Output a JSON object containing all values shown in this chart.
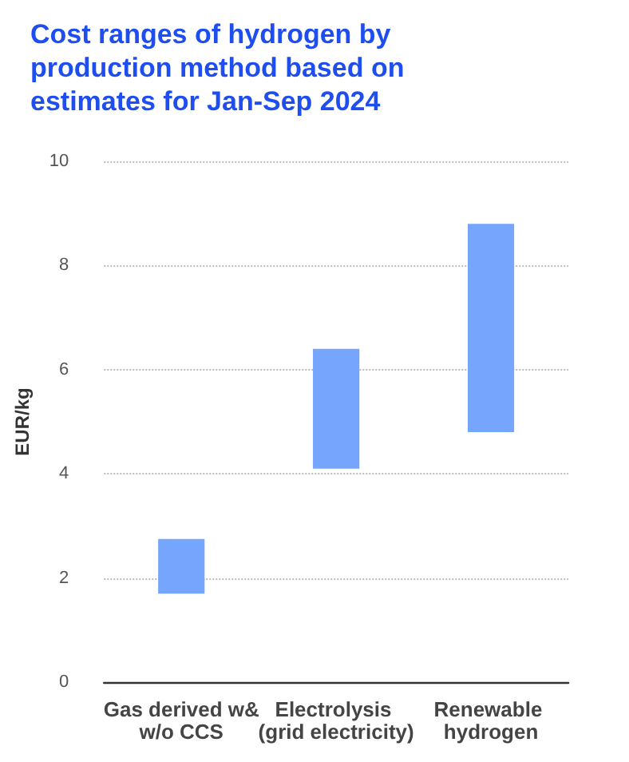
{
  "chart_data": {
    "type": "bar",
    "title": "Cost ranges of hydrogen by production method based on estimates for Jan-Sep 2024",
    "ylabel": "EUR/kg",
    "categories": [
      "Gas derived w&w/o CCS",
      "Electrolysis (grid electricity)",
      "Renewable hydrogen"
    ],
    "base": [
      1.7,
      4.1,
      4.8
    ],
    "values": [
      1.05,
      2.3,
      4.0
    ],
    "color": "#76a5fd",
    "ylim": [
      0,
      10
    ],
    "yticks": [
      0,
      2,
      4,
      6,
      8,
      10
    ],
    "grid": "y"
  }
}
